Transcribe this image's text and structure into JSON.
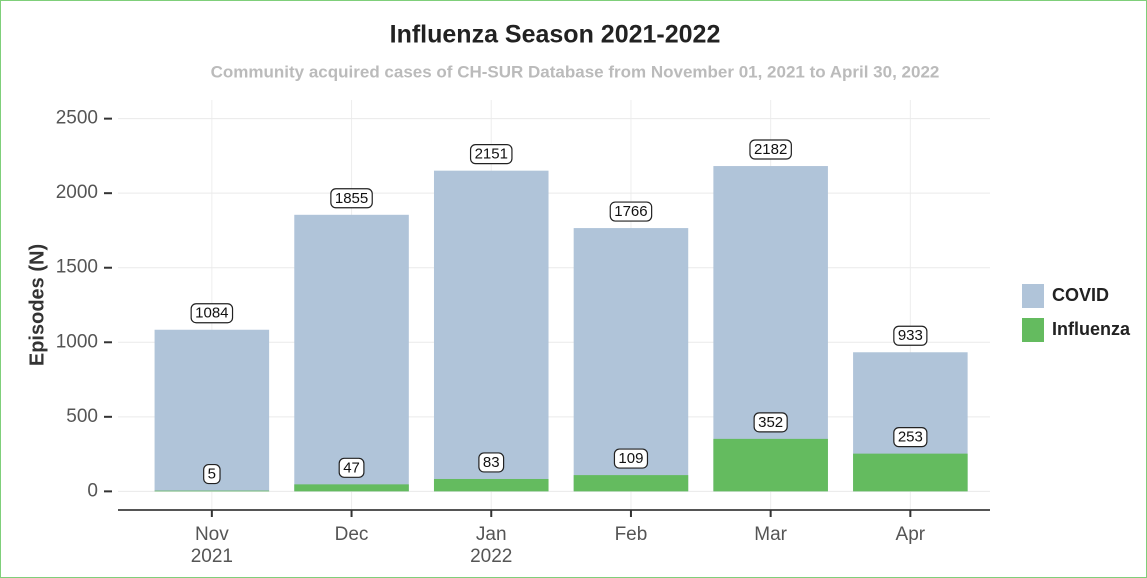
{
  "chart_data": {
    "type": "bar",
    "title": "Influenza Season 2021-2022",
    "subtitle": "Community acquired cases of CH-SUR Database from November 01, 2021 to April 30, 2022",
    "y_label": "Episodes (N)",
    "categories": [
      "Nov\n2021",
      "Dec",
      "Jan\n2022",
      "Feb",
      "Mar",
      "Apr"
    ],
    "series": [
      {
        "name": "COVID",
        "color": "#b0c4d9",
        "values": [
          1084,
          1855,
          2151,
          1766,
          2182,
          933
        ]
      },
      {
        "name": "Influenza",
        "color": "#64bb5f",
        "values": [
          5,
          47,
          83,
          109,
          352,
          253
        ]
      }
    ],
    "ylim": [
      -125,
      2625
    ],
    "yticks": [
      0,
      500,
      1000,
      1500,
      2000,
      2500
    ],
    "grid": true,
    "legend": "right"
  }
}
